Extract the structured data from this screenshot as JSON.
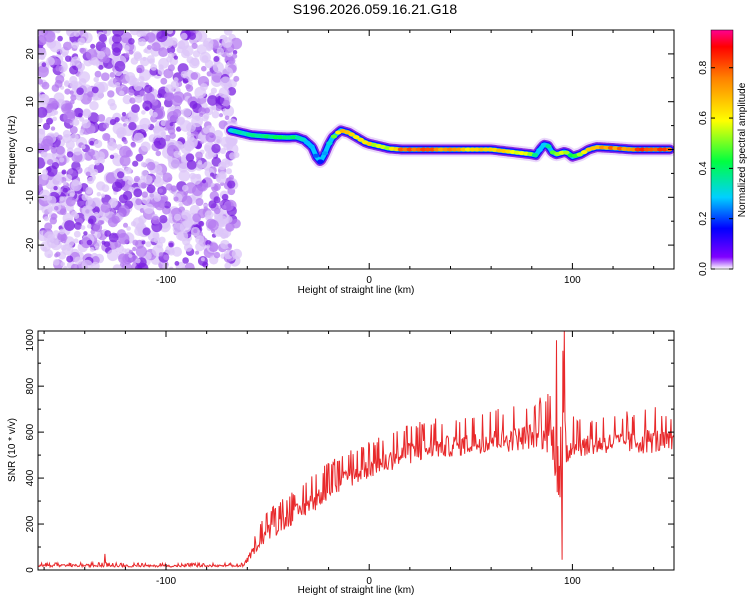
{
  "title": "S196.2026.059.16.21.G18",
  "chart_data": [
    {
      "type": "heatmap",
      "title": "S196.2026.059.16.21.G18",
      "xlabel": "Height of straight line (km)",
      "ylabel": "Frequency (Hz)",
      "xlim": [
        -163,
        150
      ],
      "ylim": [
        -25,
        25
      ],
      "xticks": [
        -100,
        0,
        100
      ],
      "yticks": [
        -20,
        -10,
        0,
        10,
        20
      ],
      "noise_region_x": [
        -163,
        -68
      ],
      "ridge": {
        "x": [
          -68,
          -63,
          -58,
          -52,
          -46,
          -40,
          -36,
          -32,
          -28,
          -26,
          -24,
          -22,
          -20,
          -18,
          -14,
          -10,
          -6,
          -2,
          0,
          4,
          10,
          16,
          22,
          30,
          40,
          50,
          60,
          70,
          76,
          80,
          82,
          84,
          86,
          88,
          90,
          92,
          94,
          96,
          98,
          100,
          104,
          108,
          112,
          120,
          130,
          140,
          148
        ],
        "frequency": [
          4,
          3.5,
          3,
          2.8,
          2.6,
          2.5,
          2.6,
          2,
          0.5,
          -1.5,
          -2.5,
          -1,
          1,
          2.5,
          4,
          3.5,
          2.5,
          1.5,
          1.2,
          0.8,
          0.2,
          0,
          0,
          0,
          0,
          0,
          0,
          -0.5,
          -0.8,
          -1,
          -1.2,
          0,
          1,
          0.8,
          -0.5,
          -1,
          -0.8,
          -0.5,
          -0.8,
          -1.5,
          -1,
          0,
          0.5,
          0.3,
          0,
          0,
          0
        ],
        "amplitude": [
          0.35,
          0.4,
          0.4,
          0.45,
          0.45,
          0.45,
          0.45,
          0.35,
          0.3,
          0.25,
          0.2,
          0.3,
          0.35,
          0.5,
          0.75,
          0.7,
          0.75,
          0.75,
          0.7,
          0.6,
          0.65,
          0.85,
          0.9,
          0.9,
          0.8,
          0.7,
          0.75,
          0.7,
          0.65,
          0.55,
          0.4,
          0.3,
          0.35,
          0.4,
          0.5,
          0.55,
          0.6,
          0.6,
          0.55,
          0.5,
          0.6,
          0.7,
          0.8,
          0.85,
          0.9,
          0.95,
          0.95
        ]
      },
      "colorbar": {
        "label": "Normalized spectral amplitude",
        "range": [
          0,
          0.95
        ],
        "ticks": [
          0.0,
          0.2,
          0.4,
          0.6,
          0.8
        ],
        "tick_labels": [
          "0.0",
          "0.2",
          "0.4",
          "0.6",
          "0.8"
        ]
      }
    },
    {
      "type": "line",
      "xlabel": "Height of straight line (km)",
      "ylabel": "SNR (10 * v/v)",
      "xlim": [
        -163,
        150
      ],
      "ylim": [
        0,
        1040
      ],
      "xticks": [
        -100,
        0,
        100
      ],
      "yticks": [
        0,
        200,
        400,
        600,
        800,
        1000
      ],
      "series": [
        {
          "name": "SNR",
          "color": "#e8292b",
          "envelope_x": [
            -163,
            -140,
            -120,
            -100,
            -80,
            -62,
            -58,
            -54,
            -50,
            -45,
            -40,
            -35,
            -30,
            -25,
            -20,
            -15,
            -10,
            -5,
            0,
            10,
            20,
            30,
            40,
            50,
            60,
            70,
            80,
            85,
            90,
            94,
            96,
            98,
            100,
            110,
            120,
            130,
            140,
            150
          ],
          "envelope_lo": [
            10,
            10,
            10,
            10,
            10,
            10,
            40,
            80,
            100,
            130,
            160,
            190,
            210,
            240,
            270,
            300,
            330,
            350,
            370,
            400,
            430,
            450,
            460,
            470,
            480,
            480,
            490,
            480,
            450,
            60,
            300,
            420,
            460,
            470,
            480,
            470,
            470,
            470
          ],
          "envelope_hi": [
            30,
            35,
            30,
            30,
            30,
            30,
            120,
            210,
            260,
            290,
            330,
            360,
            400,
            430,
            470,
            500,
            520,
            540,
            560,
            600,
            640,
            660,
            670,
            680,
            700,
            710,
            740,
            760,
            800,
            1040,
            990,
            680,
            670,
            660,
            680,
            700,
            720,
            680
          ],
          "annotations": [
            {
              "x": -130,
              "y": 70
            },
            {
              "x": 92,
              "y": 1000
            },
            {
              "x": 96,
              "y": 1040
            },
            {
              "x": 95,
              "y": 45
            }
          ]
        }
      ]
    }
  ]
}
